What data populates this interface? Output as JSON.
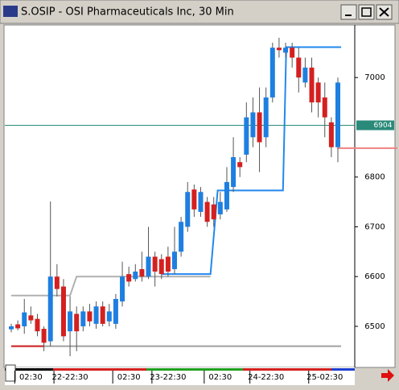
{
  "chart_data": {
    "type": "candlestick",
    "title": "S.OSIP - OSI Pharmaceuticals Inc, 30 Min",
    "up_color": "#1e7fe0",
    "down_color": "#d42020",
    "categories": [
      null,
      null,
      null,
      "02:30",
      null,
      null,
      null,
      null,
      null,
      "22-22:30",
      null,
      null,
      null,
      null,
      null,
      null,
      null,
      null,
      "02:30",
      null,
      null,
      null,
      null,
      null,
      "23-22:30",
      null,
      null,
      null,
      null,
      null,
      null,
      null,
      "02:30",
      null,
      null,
      null,
      null,
      null,
      null,
      "24-22:30",
      null,
      null,
      null,
      null,
      null,
      null,
      null,
      null,
      "25-02:30",
      null,
      null
    ],
    "open": [
      6494,
      6504,
      6500,
      6522,
      6515,
      6495,
      6470,
      6600,
      6580,
      6490,
      6525,
      6500,
      6530,
      6505,
      6540,
      6510,
      6505,
      6550,
      6605,
      6595,
      6615,
      6600,
      6640,
      6635,
      6640,
      6615,
      6650,
      6700,
      6775,
      6730,
      6750,
      6745,
      6725,
      6735,
      6780,
      6830,
      6845,
      6880,
      6930,
      6880,
      6960,
      7060,
      7050,
      7060,
      7040,
      6990,
      7020,
      6990,
      6960,
      6910,
      6860
    ],
    "high": [
      6505,
      6512,
      6555,
      6540,
      6525,
      6500,
      6751,
      6625,
      6595,
      6560,
      6540,
      6540,
      6545,
      6550,
      6550,
      6545,
      6565,
      6630,
      6620,
      6625,
      6650,
      6700,
      6650,
      6645,
      6660,
      6700,
      6720,
      6790,
      6785,
      6780,
      6760,
      6760,
      6770,
      6820,
      6880,
      6840,
      6950,
      6960,
      6980,
      6980,
      7070,
      7080,
      7070,
      7070,
      7060,
      7040,
      7040,
      7000,
      6990,
      6920,
      7000
    ],
    "low": [
      6488,
      6492,
      6485,
      6505,
      6480,
      6450,
      6460,
      6560,
      6470,
      6440,
      6450,
      6490,
      6500,
      6495,
      6500,
      6500,
      6495,
      6540,
      6580,
      6590,
      6590,
      6595,
      6580,
      6595,
      6600,
      6605,
      6640,
      6690,
      6720,
      6720,
      6700,
      6700,
      6715,
      6730,
      6770,
      6800,
      6830,
      6860,
      6810,
      6860,
      6950,
      7040,
      7040,
      7020,
      6970,
      6980,
      6930,
      6920,
      6880,
      6840,
      6830
    ],
    "close": [
      6500,
      6496,
      6528,
      6512,
      6490,
      6467,
      6600,
      6575,
      6480,
      6530,
      6490,
      6530,
      6510,
      6540,
      6505,
      6530,
      6555,
      6600,
      6590,
      6610,
      6600,
      6640,
      6610,
      6605,
      6610,
      6650,
      6710,
      6770,
      6735,
      6770,
      6710,
      6715,
      6750,
      6790,
      6840,
      6820,
      6920,
      6930,
      6870,
      6960,
      7060,
      7055,
      7060,
      7040,
      7000,
      7020,
      6950,
      6950,
      6920,
      6860,
      6990
    ],
    "overlays": [
      {
        "color": "#b0b0b0",
        "x": [
          0,
          9,
          10,
          30.5
        ],
        "values": [
          6562,
          6562,
          6600,
          6600
        ]
      },
      {
        "color": "#2288ee",
        "x": [
          23,
          30.5,
          31.6,
          41.6,
          42.1,
          50.5
        ],
        "values": [
          6605,
          6605,
          6773,
          6773,
          7061,
          7061
        ]
      },
      {
        "color": "#a0a0a0",
        "x": [
          0,
          50.5
        ],
        "values": [
          6460,
          6460
        ]
      },
      {
        "color": "#d42020",
        "x": [
          0,
          5
        ],
        "values": [
          6460,
          6460
        ]
      }
    ],
    "hlines": [
      {
        "value": 6904,
        "color": "#2a8a7a",
        "label": "6904"
      },
      {
        "value": 6858,
        "color": "#f08080"
      }
    ],
    "ylim": [
      6419,
      7104
    ],
    "yticks": [
      6500,
      6600,
      6700,
      6800,
      7000
    ]
  }
}
